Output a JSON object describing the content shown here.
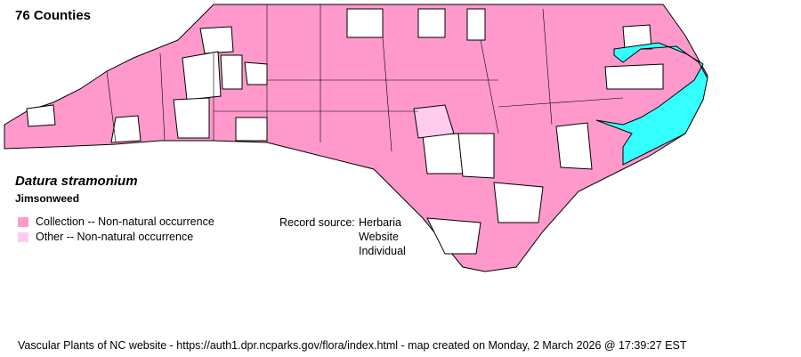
{
  "title": "76 Counties",
  "species": {
    "scientific_name": "Datura stramonium",
    "common_name": "Jimsonweed"
  },
  "legend": [
    {
      "label": "Collection -- Non-natural occurrence",
      "color": "#FF99CC"
    },
    {
      "label": "Other -- Non-natural occurrence",
      "color": "#FFCCEE"
    }
  ],
  "record_source": {
    "label": "Record source:",
    "values": [
      "Herbaria",
      "Website",
      "Individual"
    ]
  },
  "colors": {
    "water": "#33FFFF",
    "absent": "#FFFFFF",
    "outline": "#000000"
  },
  "footer": "Vascular Plants of NC website - https://auth1.dpr.ncparks.gov/flora/index.html - map created on Monday, 2 March 2026 @ 17:39:27 EST"
}
